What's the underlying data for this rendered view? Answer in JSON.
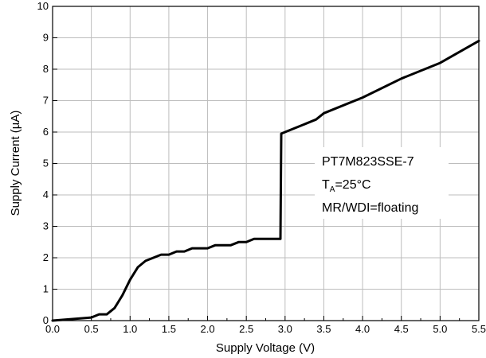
{
  "chart_data": {
    "type": "line",
    "title": "",
    "xlabel": "Supply Voltage (V)",
    "ylabel": "Supply Current (µA)",
    "xlim": [
      0,
      5.5
    ],
    "ylim": [
      0,
      10
    ],
    "grid": true,
    "legend": "none",
    "x_ticks": [
      "0.0",
      "0.5",
      "1.0",
      "1.5",
      "2.0",
      "2.5",
      "3.0",
      "3.5",
      "4.0",
      "4.5",
      "5.0",
      "5.5"
    ],
    "y_ticks": [
      "0",
      "1",
      "2",
      "3",
      "4",
      "5",
      "6",
      "7",
      "8",
      "9",
      "10"
    ],
    "x_tick_step": 0.25,
    "y_tick_step": 1,
    "annotation": {
      "line1": "PT7M823SSE-7",
      "line2_main": "T",
      "line2_sub": "A",
      "line2_rest": "=25°C",
      "line3": "MR/WDI=floating"
    },
    "series": [
      {
        "color": "#000000",
        "x": [
          0.0,
          0.5,
          0.6,
          0.7,
          0.8,
          0.9,
          1.0,
          1.1,
          1.2,
          1.3,
          1.4,
          1.5,
          1.6,
          1.7,
          1.8,
          1.9,
          2.0,
          2.1,
          2.2,
          2.3,
          2.4,
          2.5,
          2.6,
          2.7,
          2.8,
          2.94,
          2.95,
          3.0,
          3.2,
          3.4,
          3.5,
          4.0,
          4.5,
          5.0,
          5.5
        ],
        "y": [
          0.0,
          0.1,
          0.2,
          0.2,
          0.4,
          0.8,
          1.3,
          1.7,
          1.9,
          2.0,
          2.1,
          2.1,
          2.2,
          2.2,
          2.3,
          2.3,
          2.3,
          2.4,
          2.4,
          2.4,
          2.5,
          2.5,
          2.6,
          2.6,
          2.6,
          2.6,
          5.95,
          6.0,
          6.2,
          6.4,
          6.6,
          7.1,
          7.7,
          8.2,
          8.9
        ]
      }
    ]
  }
}
